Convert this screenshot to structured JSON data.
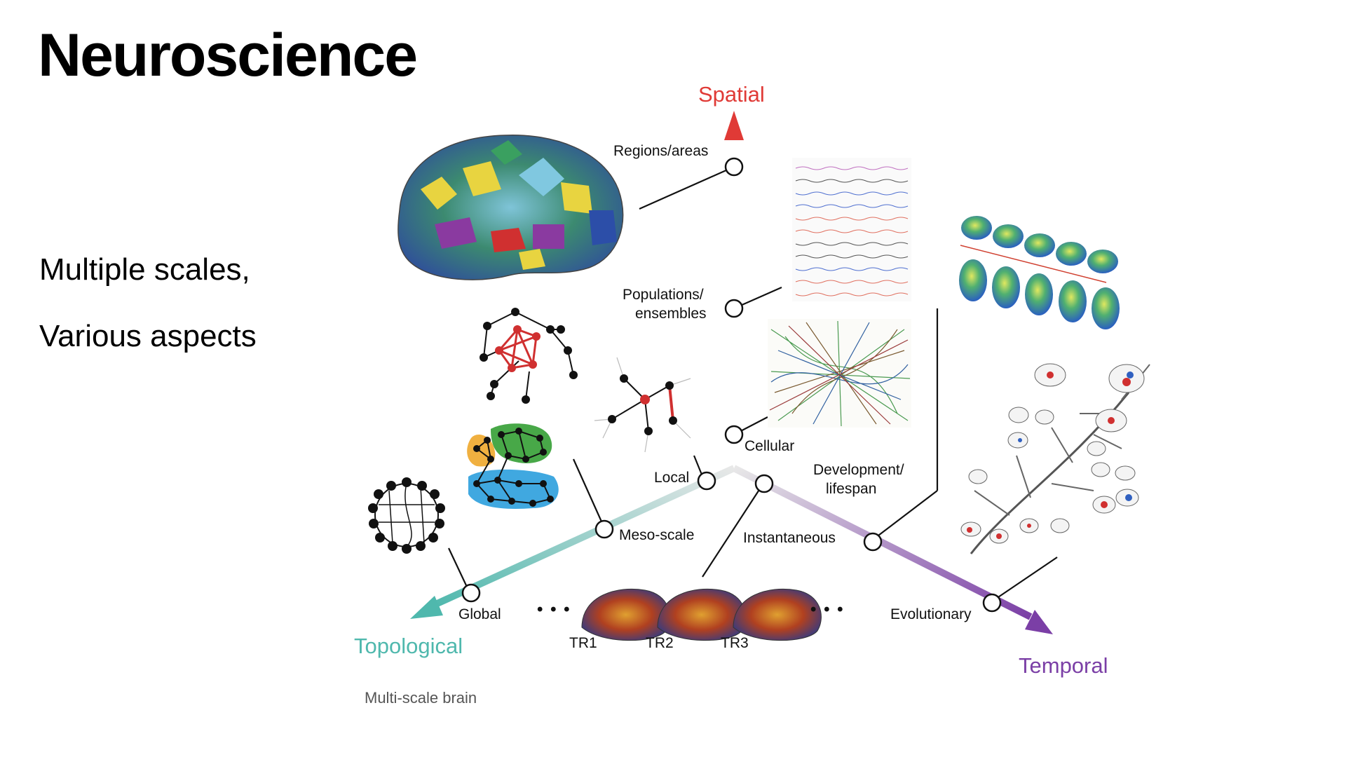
{
  "slide": {
    "title": "Neuroscience",
    "bullets": [
      "Multiple scales,",
      "Various aspects"
    ],
    "caption": "Multi-scale brain"
  },
  "diagram": {
    "axes": {
      "spatial": {
        "label": "Spatial",
        "color": "#e03a36"
      },
      "topological": {
        "label": "Topological",
        "color": "#4fb8ad"
      },
      "temporal": {
        "label": "Temporal",
        "color": "#7b3fa6"
      }
    },
    "spatial_nodes": [
      "Regions/areas",
      "Populations/",
      "ensembles",
      "Cellular"
    ],
    "topological_nodes": [
      "Local",
      "Meso-scale",
      "Global"
    ],
    "temporal_nodes": [
      "Instantaneous",
      "Development/",
      "lifespan",
      "Evolutionary"
    ],
    "time_series": [
      "TR1",
      "TR2",
      "TR3"
    ],
    "ellipsis": "• • •"
  }
}
